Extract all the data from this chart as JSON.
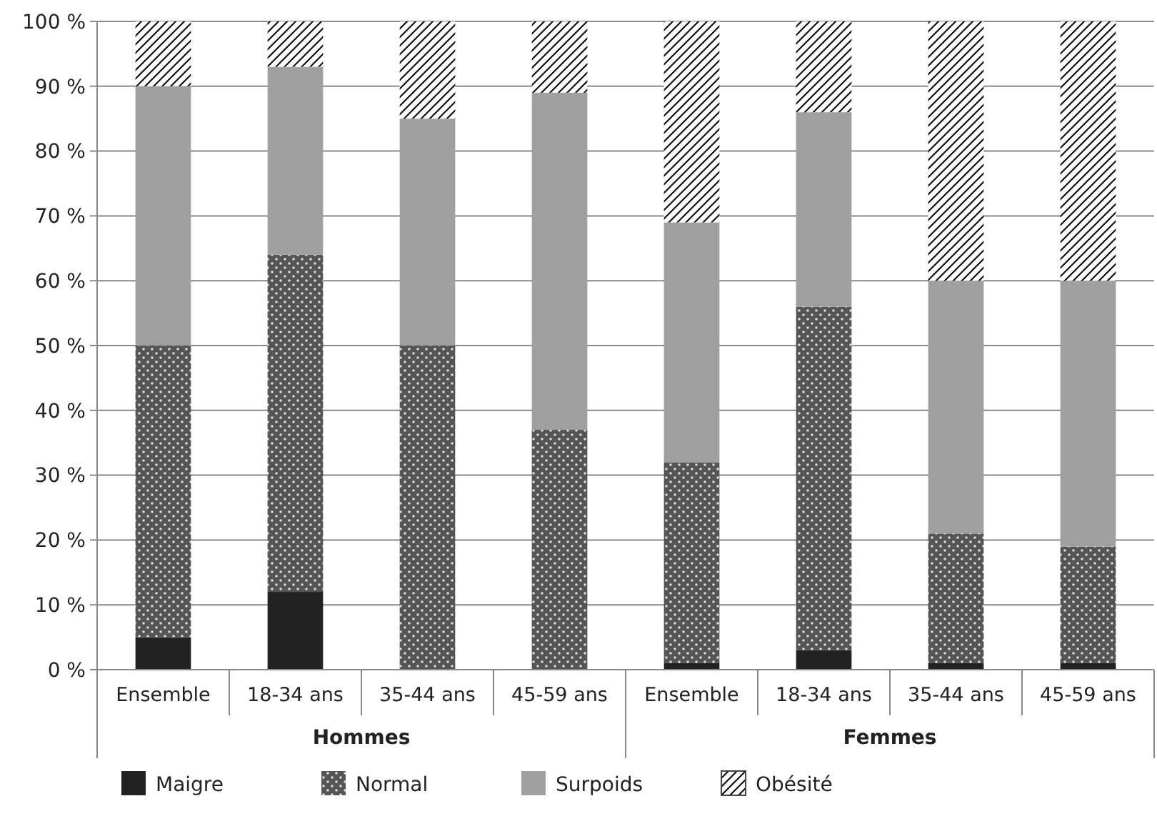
{
  "chart_data": {
    "type": "bar",
    "stacked": true,
    "categories": [
      "Ensemble",
      "18-34 ans",
      "35-44 ans",
      "45-59 ans",
      "Ensemble",
      "18-34 ans",
      "35-44 ans",
      "45-59 ans"
    ],
    "series": [
      {
        "name": "Maigre",
        "color": "#222222",
        "values": [
          5,
          12,
          0,
          0,
          1,
          3,
          1,
          1
        ]
      },
      {
        "name": "Normal",
        "color": "#555555",
        "values": [
          45,
          52,
          50,
          37,
          31,
          53,
          20,
          18
        ]
      },
      {
        "name": "Surpoids",
        "color": "#a0a0a0",
        "values": [
          40,
          29,
          35,
          52,
          37,
          30,
          39,
          41
        ]
      },
      {
        "name": "Obésité",
        "color": "#ffffff",
        "values": [
          10,
          7,
          15,
          11,
          31,
          14,
          40,
          40
        ]
      }
    ],
    "ylim": [
      0,
      100
    ],
    "yticks": [
      {
        "value": 0,
        "label": "0 %"
      },
      {
        "value": 10,
        "label": "10 %"
      },
      {
        "value": 20,
        "label": "20 %"
      },
      {
        "value": 30,
        "label": "30 %"
      },
      {
        "value": 40,
        "label": "40 %"
      },
      {
        "value": 50,
        "label": "50 %"
      },
      {
        "value": 60,
        "label": "60 %"
      },
      {
        "value": 70,
        "label": "70 %"
      },
      {
        "value": 80,
        "label": "80 %"
      },
      {
        "value": 90,
        "label": "90 %"
      },
      {
        "value": 100,
        "label": "100 %"
      }
    ],
    "grid": "y",
    "legend": "bottom",
    "annotations": [
      "Hommes",
      "Femmes"
    ]
  }
}
